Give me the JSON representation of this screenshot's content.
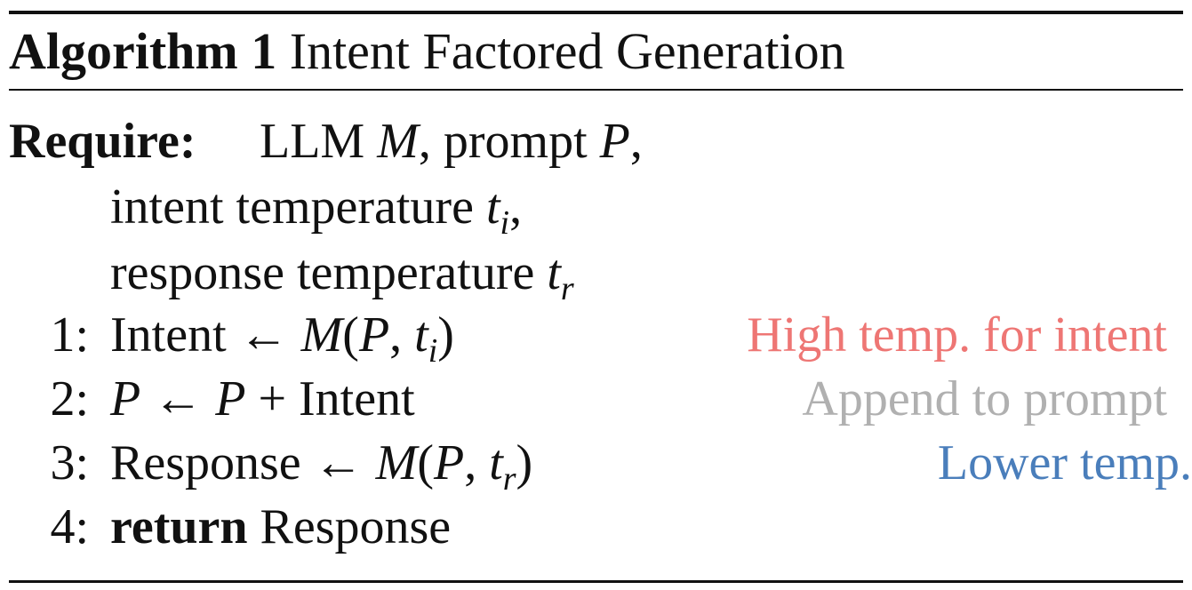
{
  "algorithm": {
    "label": "Algorithm 1",
    "title": "Intent Factored Generation"
  },
  "require": {
    "label": "Require:",
    "line1_text": "LLM",
    "line1_var": "M",
    "line1_sep": ", prompt",
    "line1_var2": "P",
    "line1_end": ",",
    "line2_text": "intent temperature",
    "line2_var": "t",
    "line2_sub": "i",
    "line2_end": ",",
    "line3_text": "response temperature",
    "line3_var": "t",
    "line3_sub": "r"
  },
  "steps": [
    {
      "num": "1:",
      "lhs": "Intent",
      "arrow": "←",
      "fn": "M",
      "open": "(",
      "arg1": "P",
      "comma": ",",
      "arg2": "t",
      "arg2_sub": "i",
      "close": ")",
      "comment": "High temp. for intent",
      "comment_color": "#ee7674"
    },
    {
      "num": "2:",
      "lhs": "P",
      "arrow": "←",
      "rhs_var": "P",
      "plus": "+",
      "rhs_text": "Intent",
      "comment": "Append to prompt",
      "comment_color": "#b0b0b0"
    },
    {
      "num": "3:",
      "lhs": "Response",
      "arrow": "←",
      "fn": "M",
      "open": "(",
      "arg1": "P",
      "comma": ",",
      "arg2": "t",
      "arg2_sub": "r",
      "close": ")",
      "comment": "Lower temp.",
      "comment_color": "#4a7ebb"
    },
    {
      "num": "4:",
      "keyword": "return",
      "value": "Response"
    }
  ]
}
